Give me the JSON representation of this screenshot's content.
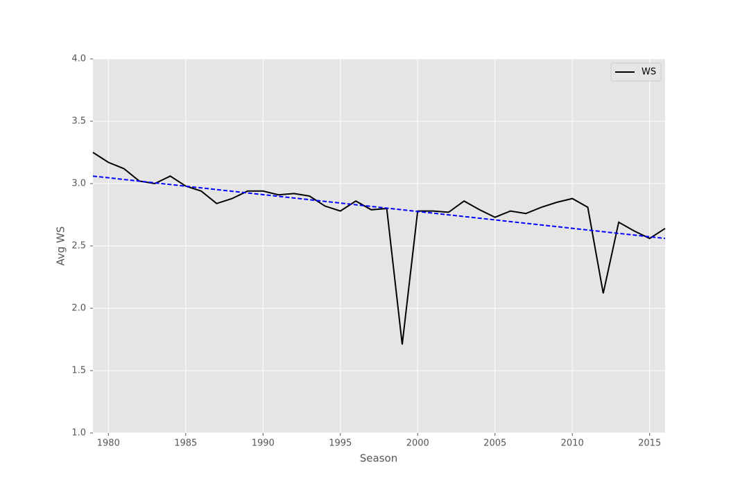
{
  "chart_data": {
    "type": "line",
    "xlabel": "Season",
    "ylabel": "Avg WS",
    "x": [
      1979,
      1980,
      1981,
      1982,
      1983,
      1984,
      1985,
      1986,
      1987,
      1988,
      1989,
      1990,
      1991,
      1992,
      1993,
      1994,
      1995,
      1996,
      1997,
      1998,
      1999,
      2000,
      2001,
      2002,
      2003,
      2004,
      2005,
      2006,
      2007,
      2008,
      2009,
      2010,
      2011,
      2012,
      2013,
      2014,
      2015,
      2016
    ],
    "series": [
      {
        "name": "WS",
        "color": "#000000",
        "values": [
          3.25,
          3.17,
          3.12,
          3.02,
          3.0,
          3.06,
          2.98,
          2.94,
          2.84,
          2.88,
          2.94,
          2.94,
          2.91,
          2.92,
          2.9,
          2.82,
          2.78,
          2.86,
          2.79,
          2.8,
          1.71,
          2.78,
          2.78,
          2.77,
          2.86,
          2.79,
          2.73,
          2.78,
          2.76,
          2.81,
          2.85,
          2.88,
          2.81,
          2.12,
          2.69,
          2.62,
          2.56,
          2.64
        ]
      }
    ],
    "trend": {
      "x": [
        1979,
        2016
      ],
      "values": [
        3.06,
        2.56
      ],
      "color": "#0000ff"
    },
    "xlim": [
      1979,
      2016
    ],
    "xticks": [
      1980,
      1985,
      1990,
      1995,
      2000,
      2005,
      2010,
      2015
    ],
    "ylim": [
      1.0,
      4.0
    ],
    "yticks": [
      {
        "value": 1.0,
        "label": "1.0"
      },
      1.5,
      {
        "value": 2.0,
        "label": "2.0"
      },
      2.5,
      {
        "value": 3.0,
        "label": "3.0"
      },
      3.5,
      {
        "value": 4.0,
        "label": "4.0"
      }
    ],
    "grid": true,
    "legend": "upper right"
  }
}
